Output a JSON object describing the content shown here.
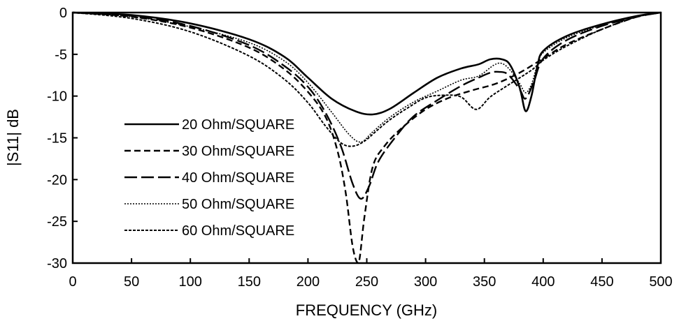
{
  "chart_data": {
    "type": "line",
    "title": "",
    "xlabel": "FREQUENCY (GHz)",
    "ylabel": "|S11| dB",
    "xlim": [
      0,
      500
    ],
    "ylim": [
      -30,
      0
    ],
    "xticks": [
      "0",
      "50",
      "100",
      "150",
      "200",
      "250",
      "300",
      "350",
      "400",
      "450",
      "500"
    ],
    "yticks": [
      "0",
      "-5",
      "-10",
      "-15",
      "-20",
      "-25",
      "-30"
    ],
    "grid": false,
    "legend_position": "left",
    "series": [
      {
        "name": "20 Ohm/SQUARE",
        "dash": "solid",
        "x": [
          0,
          50,
          100,
          150,
          180,
          200,
          220,
          240,
          255,
          270,
          290,
          310,
          330,
          345,
          355,
          365,
          372,
          380,
          385,
          390,
          395,
          400,
          420,
          450,
          480,
          500
        ],
        "y": [
          0,
          -0.3,
          -1.3,
          -3.2,
          -5.3,
          -7.8,
          -10.3,
          -11.8,
          -12.2,
          -11.5,
          -9.6,
          -7.8,
          -6.7,
          -6.2,
          -5.6,
          -5.6,
          -6.3,
          -9.0,
          -11.8,
          -10.0,
          -6.5,
          -4.6,
          -2.8,
          -1.4,
          -0.4,
          0
        ]
      },
      {
        "name": "30 Ohm/SQUARE",
        "dash": "short",
        "x": [
          0,
          50,
          100,
          150,
          180,
          200,
          215,
          225,
          232,
          238,
          243,
          248,
          255,
          265,
          280,
          300,
          320,
          340,
          360,
          380,
          400,
          420,
          450,
          480,
          500
        ],
        "y": [
          0,
          -0.5,
          -1.8,
          -4.2,
          -6.8,
          -9.5,
          -12.5,
          -16.5,
          -21.5,
          -28.0,
          -30.0,
          -24.5,
          -18.5,
          -16.0,
          -13.8,
          -11.6,
          -10.2,
          -9.3,
          -8.5,
          -7.2,
          -5.5,
          -3.8,
          -2.0,
          -0.5,
          0
        ]
      },
      {
        "name": "40 Ohm/SQUARE",
        "dash": "long",
        "x": [
          0,
          50,
          100,
          150,
          180,
          200,
          215,
          228,
          238,
          245,
          252,
          260,
          275,
          290,
          310,
          330,
          345,
          355,
          362,
          370,
          380,
          385,
          392,
          400,
          420,
          450,
          480,
          500
        ],
        "y": [
          0,
          -0.4,
          -1.6,
          -3.9,
          -6.4,
          -8.9,
          -12.0,
          -16.0,
          -20.5,
          -22.3,
          -20.8,
          -17.8,
          -14.8,
          -12.4,
          -10.5,
          -8.8,
          -7.8,
          -7.2,
          -7.1,
          -7.4,
          -9.2,
          -10.3,
          -8.3,
          -5.5,
          -3.3,
          -1.6,
          -0.5,
          0
        ]
      },
      {
        "name": "50 Ohm/SQUARE",
        "dash": "dotted",
        "x": [
          0,
          50,
          100,
          150,
          180,
          200,
          220,
          235,
          245,
          255,
          270,
          290,
          310,
          330,
          345,
          358,
          365,
          372,
          380,
          385,
          390,
          395,
          400,
          420,
          450,
          480,
          500
        ],
        "y": [
          0,
          -0.5,
          -1.7,
          -3.6,
          -5.8,
          -8.4,
          -11.9,
          -14.6,
          -15.5,
          -14.3,
          -12.5,
          -10.7,
          -9.4,
          -8.1,
          -7.6,
          -6.3,
          -6.1,
          -6.9,
          -8.5,
          -9.6,
          -8.6,
          -6.3,
          -4.8,
          -3.0,
          -1.5,
          -0.4,
          0
        ]
      },
      {
        "name": "60 Ohm/SQUARE",
        "dash": "fine",
        "x": [
          0,
          50,
          100,
          150,
          180,
          200,
          215,
          228,
          238,
          248,
          258,
          270,
          285,
          300,
          315,
          330,
          343,
          355,
          370,
          390,
          400,
          420,
          450,
          480,
          500
        ],
        "y": [
          0,
          -0.7,
          -2.3,
          -5.2,
          -8.0,
          -10.8,
          -13.6,
          -15.6,
          -16.0,
          -15.4,
          -14.2,
          -12.8,
          -11.4,
          -10.2,
          -9.9,
          -10.1,
          -11.6,
          -10.1,
          -8.7,
          -6.9,
          -5.7,
          -4.0,
          -2.0,
          -0.5,
          0
        ]
      }
    ]
  }
}
